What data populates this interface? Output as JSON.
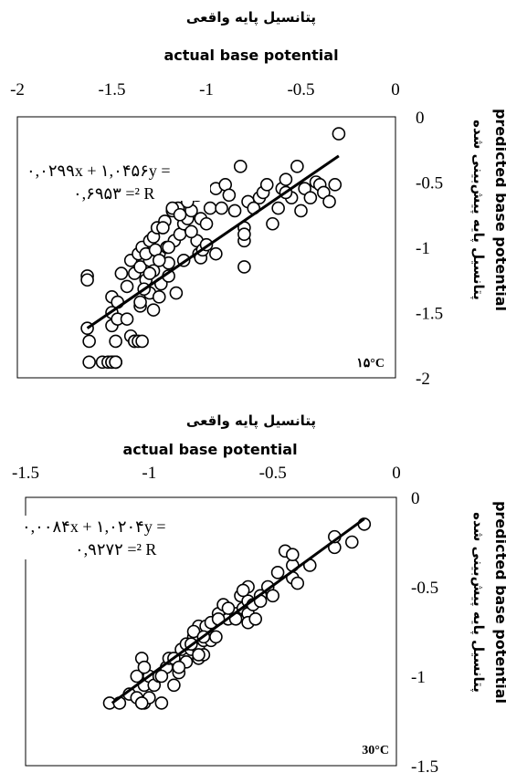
{
  "chart_data": [
    {
      "type": "scatter",
      "title_fa": "پتانسیل پایه واقعی",
      "title_en": "actual base potential",
      "ylabel_fa": "پتانسیل پایه پیش‌بینی شده",
      "ylabel_en": "predicted base potential",
      "xlim": [
        -2,
        0
      ],
      "ylim": [
        -2,
        0
      ],
      "x_ticks": [
        {
          "v": -2,
          "label": "-2"
        },
        {
          "v": -1.5,
          "label": "-1.5"
        },
        {
          "v": -1,
          "label": "-1"
        },
        {
          "v": -0.5,
          "label": "-0.5"
        },
        {
          "v": 0,
          "label": "0"
        }
      ],
      "y_ticks": [
        {
          "v": 0,
          "label": "0"
        },
        {
          "v": -0.5,
          "label": "-0.5"
        },
        {
          "v": -1,
          "label": "-1"
        },
        {
          "v": -1.5,
          "label": "-1.5"
        },
        {
          "v": -2,
          "label": "-2"
        }
      ],
      "equation_line1": "۰,۰۲۹۹x + ۱,۰۴۵۶y =",
      "equation_line2": "۰,۶۹۵۳ =² R",
      "temperature_tag": "۱۵°C",
      "grid": false,
      "trendline": {
        "x": [
          -1.63,
          -0.3
        ],
        "y": [
          -1.62,
          -0.3
        ]
      },
      "series": [
        {
          "x": [
            -1.63,
            -1.63,
            -1.63,
            -1.62,
            -1.62,
            -1.5,
            -1.5,
            -1.5,
            -1.48,
            -1.48,
            -1.47,
            -1.47,
            -1.45,
            -1.42,
            -1.42,
            -1.4,
            -1.38,
            -1.36,
            -1.35,
            -1.35,
            -1.34,
            -1.32,
            -1.3,
            -1.3,
            -1.3,
            -1.28,
            -1.28,
            -1.26,
            -1.25,
            -1.24,
            -1.22,
            -1.21,
            -1.2,
            -1.18,
            -1.17,
            -1.15,
            -1.14,
            -1.12,
            -1.1,
            -1.08,
            -1.06,
            -1.05,
            -1.04,
            -1.03,
            -1.4,
            -1.38,
            -1.35,
            -1.33,
            -1.32,
            -1.3,
            -1.28,
            -1.27,
            -1.25,
            -1.23,
            -1.2,
            -1.18,
            -1.16,
            -1.14,
            -1.12,
            -1.1,
            -1.08,
            -1.05,
            -1.03,
            -1.02,
            -1.0,
            -0.98,
            -0.95,
            -0.92,
            -0.9,
            -0.88,
            -0.85,
            -0.82,
            -0.8,
            -0.8,
            -0.8,
            -0.78,
            -0.75,
            -0.72,
            -0.7,
            -0.68,
            -0.65,
            -0.62,
            -0.6,
            -0.58,
            -0.55,
            -0.52,
            -0.5,
            -0.48,
            -0.45,
            -0.42,
            -0.4,
            -0.38,
            -0.35,
            -0.32,
            -0.3,
            -0.58,
            -0.8,
            -1.0,
            -0.95,
            -1.2,
            -1.25,
            -1.55,
            -1.52,
            -1.5,
            -1.5,
            -1.48,
            -1.48,
            -1.38,
            -1.36,
            -1.34
          ],
          "y": [
            -1.22,
            -1.25,
            -1.62,
            -1.72,
            -1.88,
            -1.38,
            -1.5,
            -1.6,
            -1.72,
            -1.88,
            -1.42,
            -1.55,
            -1.2,
            -1.3,
            -1.55,
            -1.1,
            -1.2,
            -1.05,
            -1.15,
            -1.45,
            -1.0,
            -1.25,
            -0.95,
            -1.1,
            -1.35,
            -0.92,
            -1.18,
            -0.85,
            -1.05,
            -1.28,
            -0.8,
            -1.0,
            -1.22,
            -0.72,
            -0.95,
            -0.7,
            -0.9,
            -0.82,
            -0.78,
            -0.72,
            -0.52,
            -0.95,
            -1.05,
            -1.08,
            -1.68,
            -1.72,
            -1.42,
            -1.32,
            -1.05,
            -1.2,
            -1.48,
            -1.02,
            -1.38,
            -0.85,
            -1.12,
            -0.7,
            -1.35,
            -0.75,
            -1.1,
            -0.65,
            -0.88,
            -0.6,
            -0.78,
            -1.02,
            -0.82,
            -0.7,
            -0.55,
            -0.7,
            -0.52,
            -0.6,
            -0.72,
            -0.38,
            -0.85,
            -0.95,
            -1.15,
            -0.65,
            -0.7,
            -0.62,
            -0.58,
            -0.52,
            -0.82,
            -0.7,
            -0.55,
            -0.48,
            -0.62,
            -0.38,
            -0.72,
            -0.55,
            -0.62,
            -0.5,
            -0.52,
            -0.58,
            -0.65,
            -0.52,
            -0.13,
            -0.58,
            -0.9,
            -0.98,
            -1.05,
            -1.0,
            -1.1,
            -1.88,
            -1.88,
            -1.88,
            -1.88,
            -1.88,
            -1.88,
            -1.72,
            -1.72,
            -1.72
          ]
        }
      ]
    },
    {
      "type": "scatter",
      "title_fa": "پتانسیل پایه واقعی",
      "title_en": "actual base potential",
      "ylabel_fa": "پتانسیل پایه پیش‌بینی شده",
      "ylabel_en": "predicted base potential",
      "xlim": [
        -1.5,
        0
      ],
      "ylim": [
        -1.5,
        0
      ],
      "x_ticks": [
        {
          "v": -1.5,
          "label": "-1.5"
        },
        {
          "v": -1,
          "label": "-1"
        },
        {
          "v": -0.5,
          "label": "-0.5"
        },
        {
          "v": 0,
          "label": "0"
        }
      ],
      "y_ticks": [
        {
          "v": 0,
          "label": "0"
        },
        {
          "v": -0.5,
          "label": "-0.5"
        },
        {
          "v": -1,
          "label": "-1"
        },
        {
          "v": -1.5,
          "label": "-1.5"
        }
      ],
      "equation_line1": "۰,۰۰۸۴x + ۱,۰۲۰۴y =",
      "equation_line2": "۰,۹۲۷۲ =² R",
      "temperature_tag": "30°C",
      "grid": false,
      "trendline": {
        "x": [
          -1.15,
          -0.13
        ],
        "y": [
          -1.15,
          -0.12
        ]
      },
      "series": [
        {
          "x": [
            -1.16,
            -1.12,
            -1.08,
            -1.05,
            -1.03,
            -1.02,
            -1.0,
            -0.98,
            -0.96,
            -0.95,
            -0.93,
            -0.92,
            -0.9,
            -0.88,
            -0.87,
            -0.85,
            -0.83,
            -0.82,
            -0.8,
            -0.8,
            -0.8,
            -0.78,
            -0.78,
            -0.77,
            -0.75,
            -0.75,
            -0.73,
            -0.72,
            -0.7,
            -0.68,
            -0.65,
            -0.63,
            -0.62,
            -0.6,
            -0.6,
            -0.6,
            -0.6,
            -0.58,
            -0.57,
            -0.55,
            -0.52,
            -0.5,
            -0.48,
            -0.45,
            -0.42,
            -0.42,
            -0.42,
            -0.4,
            -0.35,
            -0.25,
            -0.25,
            -0.18,
            -0.13,
            -1.05,
            -1.03,
            -1.02,
            -1.0,
            -0.95,
            -0.9,
            -0.88,
            -0.85,
            -0.83,
            -0.82,
            -0.8,
            -0.78,
            -0.72,
            -0.68,
            -0.65,
            -0.62,
            -0.55,
            -1.03,
            -1.02
          ],
          "y": [
            -1.15,
            -1.15,
            -1.1,
            -1.0,
            -0.9,
            -1.05,
            -1.0,
            -1.05,
            -1.0,
            -1.15,
            -0.95,
            -0.9,
            -1.05,
            -0.98,
            -0.85,
            -0.92,
            -0.85,
            -0.78,
            -0.72,
            -0.85,
            -0.9,
            -0.8,
            -0.88,
            -0.72,
            -0.8,
            -0.7,
            -0.78,
            -0.65,
            -0.6,
            -0.68,
            -0.65,
            -0.55,
            -0.62,
            -0.5,
            -0.58,
            -0.65,
            -0.7,
            -0.6,
            -0.68,
            -0.55,
            -0.5,
            -0.55,
            -0.42,
            -0.3,
            -0.38,
            -0.45,
            -0.32,
            -0.48,
            -0.38,
            -0.28,
            -0.22,
            -0.25,
            -0.15,
            -1.12,
            -1.15,
            -1.15,
            -1.12,
            -1.0,
            -0.9,
            -0.95,
            -0.82,
            -0.82,
            -0.75,
            -0.88,
            -0.78,
            -0.68,
            -0.62,
            -0.68,
            -0.52,
            -0.58,
            -1.15,
            -0.95
          ]
        }
      ]
    }
  ]
}
